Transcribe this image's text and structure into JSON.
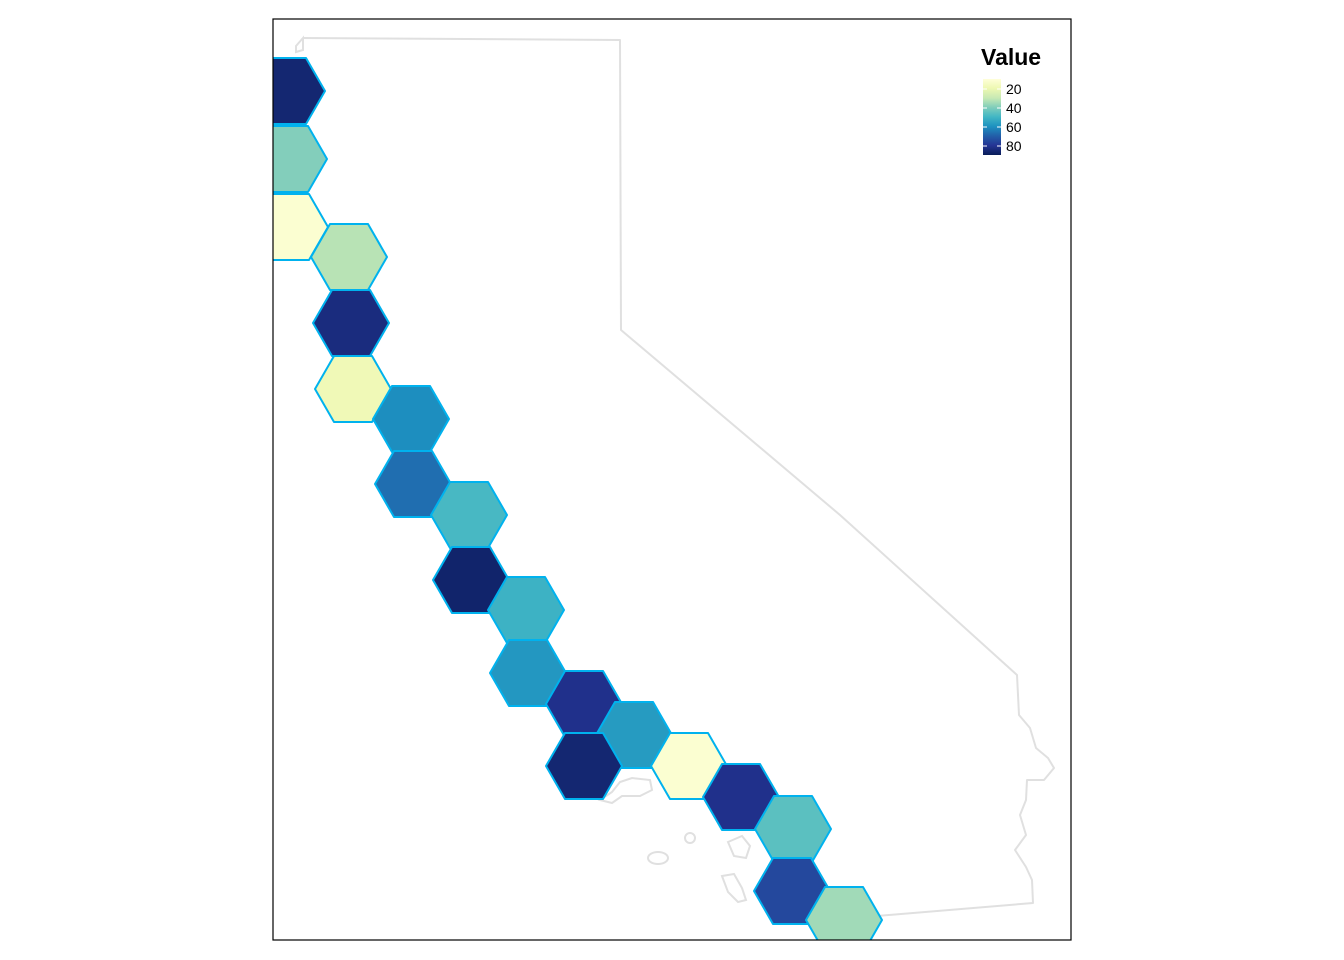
{
  "map": {
    "legend": {
      "title": "Value",
      "labels": [
        "20",
        "40",
        "60",
        "80"
      ],
      "gradient_colors": [
        "#ffffd9",
        "#edf8b1",
        "#c7e9b4",
        "#7fcdbb",
        "#41b6c4",
        "#1d91c0",
        "#225ea8",
        "#253494",
        "#081d58"
      ]
    },
    "colors": {
      "frame": "#000000",
      "outline": "#e0e0e0",
      "hex_border": "#00b2ee"
    },
    "hex_cells": [
      {
        "value": 84
      },
      {
        "value": 40
      },
      {
        "value": 14
      },
      {
        "value": 33
      },
      {
        "value": 82
      },
      {
        "value": 20
      },
      {
        "value": 60
      },
      {
        "value": 66
      },
      {
        "value": 49
      },
      {
        "value": 85
      },
      {
        "value": 51
      },
      {
        "value": 58
      },
      {
        "value": 80
      },
      {
        "value": 57
      },
      {
        "value": 84
      },
      {
        "value": 14
      },
      {
        "value": 80
      },
      {
        "value": 46
      },
      {
        "value": 74
      },
      {
        "value": 36
      }
    ]
  }
}
